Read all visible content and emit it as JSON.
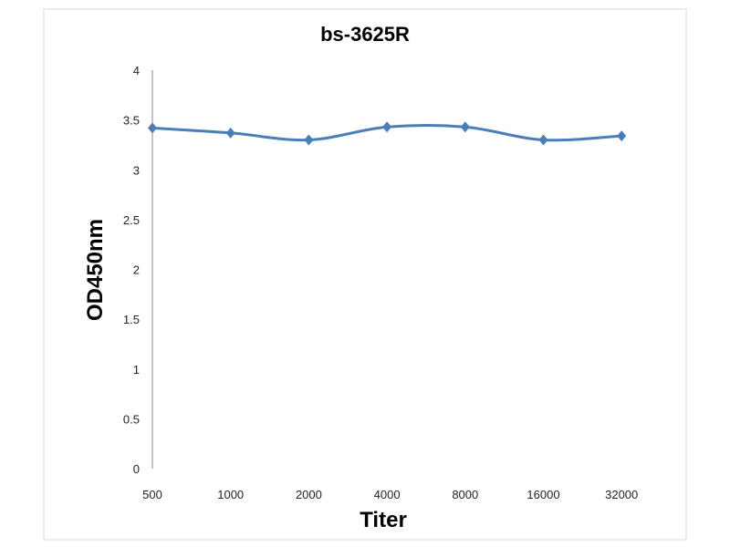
{
  "chart_data": {
    "type": "line",
    "title": "bs-3625R",
    "xlabel": "Titer",
    "ylabel": "OD450nm",
    "categories": [
      "500",
      "1000",
      "2000",
      "4000",
      "8000",
      "16000",
      "32000"
    ],
    "series": [
      {
        "name": "bs-3625R",
        "values": [
          3.42,
          3.37,
          3.3,
          3.43,
          3.43,
          3.3,
          3.34
        ],
        "color": "#4a7ebb"
      }
    ],
    "ylim": [
      0,
      4
    ],
    "yticks": [
      "0",
      "0.5",
      "1",
      "1.5",
      "2",
      "2.5",
      "3",
      "3.5",
      "4"
    ],
    "grid": false,
    "legend": "none"
  }
}
